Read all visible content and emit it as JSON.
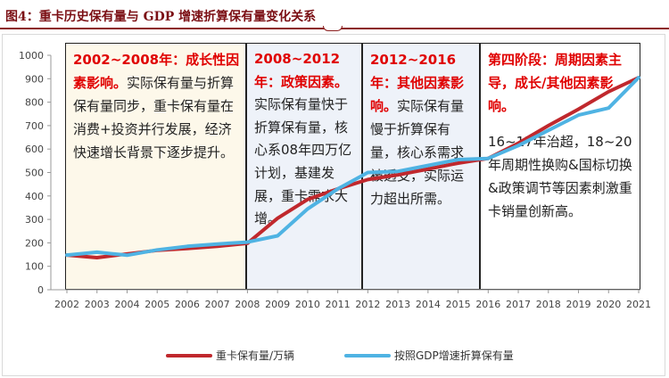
{
  "title": "图4：重卡历史保有量与 GDP 增速折算保有量变化关系",
  "chart_data": {
    "type": "line",
    "title": "重卡历史保有量与GDP增速折算保有量变化关系",
    "x": [
      "2002",
      "2003",
      "2004",
      "2005",
      "2006",
      "2007",
      "2008",
      "2009",
      "2010",
      "2011",
      "2012",
      "2013",
      "2014",
      "2015",
      "2016",
      "2017",
      "2018",
      "2019",
      "2020",
      "2021"
    ],
    "ylim": [
      0,
      1000
    ],
    "yticks": [
      0,
      100,
      200,
      300,
      400,
      500,
      600,
      700,
      800,
      900,
      1000
    ],
    "series": [
      {
        "name": "重卡保有量/万辆",
        "color": "#c0282d",
        "values": [
          148,
          137,
          153,
          168,
          176,
          185,
          198,
          305,
          385,
          430,
          470,
          490,
          515,
          540,
          560,
          625,
          700,
          770,
          845,
          905
        ]
      },
      {
        "name": "按照GDP增速折算保有量",
        "color": "#4fb3e3",
        "values": [
          148,
          160,
          147,
          170,
          185,
          195,
          203,
          230,
          345,
          430,
          500,
          505,
          530,
          555,
          560,
          615,
          680,
          745,
          775,
          905
        ]
      }
    ],
    "legend": "bottom"
  },
  "phases": [
    {
      "highlight": "2002~2008年：成长性因素影响。",
      "text": "实际保有量与折算保有量同步，重卡保有量在消费+投资并行发展，经济快速增长背景下逐步提升。",
      "extra": ""
    },
    {
      "highlight": "2008~2012年：政策因素。",
      "text": "实际保有量快于折算保有量，核心系08年四万亿计划，基建发展，重卡需求大增。",
      "extra": ""
    },
    {
      "highlight": "2012~2016年：其他因素影响。",
      "text": "实际保有量慢于折算保有量，核心系需求被透支，实际运力超出所需。",
      "extra": ""
    },
    {
      "highlight": "第四阶段：周期因素主导，成长/其他因素影响。",
      "text": "",
      "extra": "16~17年治超，18~20年周期性换购&国标切换&政策调节等因素刺激重卡销量创新高。"
    }
  ]
}
